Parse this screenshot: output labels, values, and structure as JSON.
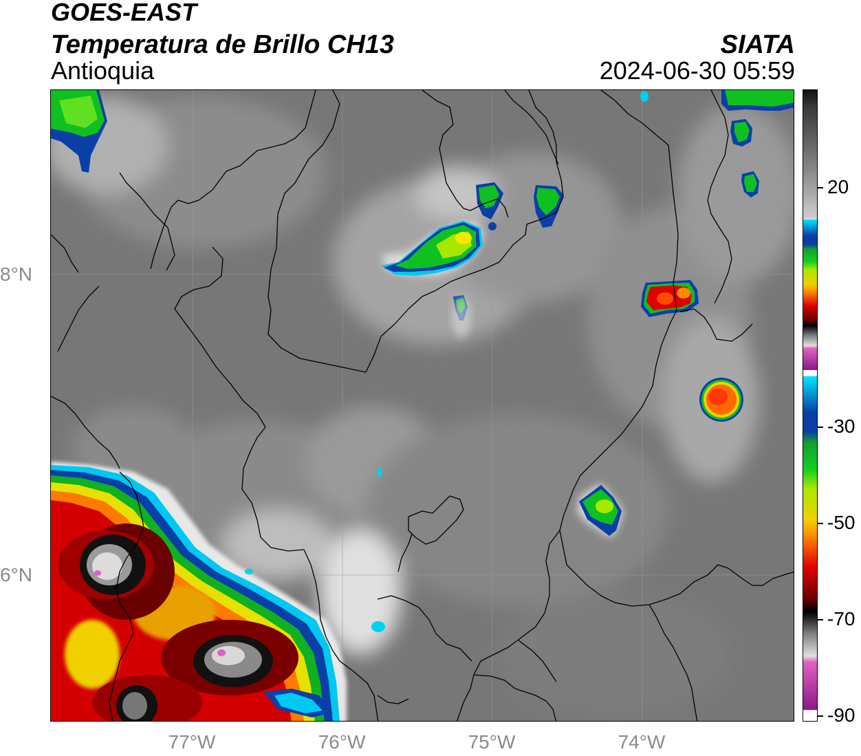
{
  "header": {
    "satellite": "GOES-EAST",
    "product": "Temperatura de Brillo CH13",
    "region": "Antioquia",
    "org": "SIATA",
    "datetime": "2024-06-30 05:59"
  },
  "axes": {
    "x_ticks": [
      {
        "label": "77°W",
        "lon": -77
      },
      {
        "label": "76°W",
        "lon": -76
      },
      {
        "label": "75°W",
        "lon": -75
      },
      {
        "label": "74°W",
        "lon": -74
      }
    ],
    "y_ticks": [
      {
        "label": "8°N",
        "lat": 8
      },
      {
        "label": "6°N",
        "lat": 6
      }
    ]
  },
  "colorbar": {
    "ticks": [
      {
        "label": "20",
        "value": 20
      },
      {
        "label": "-30",
        "value": -30
      },
      {
        "label": "-50",
        "value": -50
      },
      {
        "label": "-70",
        "value": -70
      },
      {
        "label": "-90",
        "value": -90
      }
    ],
    "colors": {
      "warm_top": "#111111",
      "gray_mid": "#8a8a8a",
      "white": "#ffffff",
      "cyan": "#00e5ff",
      "blue": "#0a3fa8",
      "green": "#10c020",
      "yellow": "#f4f000",
      "orange": "#ff8a00",
      "red": "#e00000",
      "dark_red": "#6a0000",
      "black": "#000000",
      "light_gray": "#d8d8d8",
      "pink": "#e060c0",
      "purple": "#8a1a8a"
    }
  }
}
